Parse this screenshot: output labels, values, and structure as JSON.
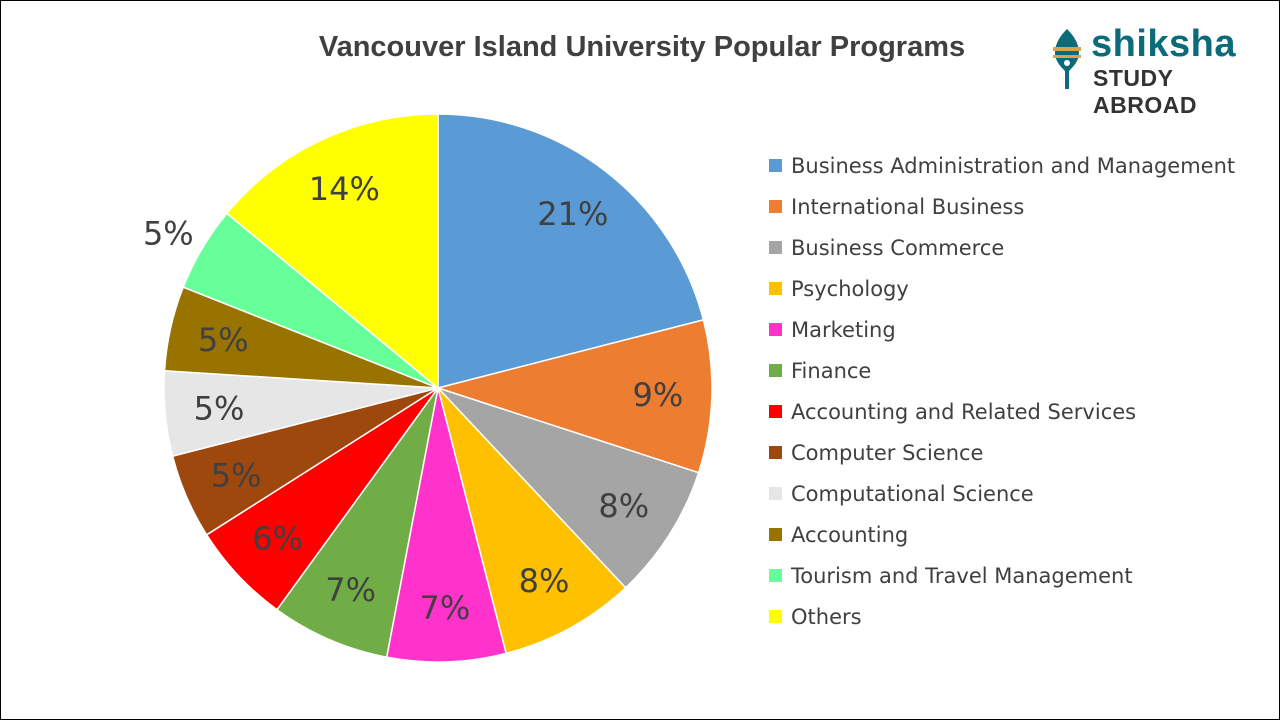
{
  "chart_data": {
    "type": "pie",
    "title": "Vancouver Island University Popular Programs",
    "legend_position": "right",
    "slices": [
      {
        "name": "Business Administration and Management",
        "value": 21,
        "label": "21%",
        "color": "#5B9BD5"
      },
      {
        "name": "International Business",
        "value": 9,
        "label": "9%",
        "color": "#ED7D31"
      },
      {
        "name": "Business Commerce",
        "value": 8,
        "label": "8%",
        "color": "#A5A5A5"
      },
      {
        "name": "Psychology",
        "value": 8,
        "label": "8%",
        "color": "#FFC000"
      },
      {
        "name": "Marketing",
        "value": 7,
        "label": "7%",
        "color": "#FF33CC"
      },
      {
        "name": "Finance",
        "value": 7,
        "label": "7%",
        "color": "#70AD47"
      },
      {
        "name": "Accounting and Related Services",
        "value": 6,
        "label": "6%",
        "color": "#FF0000"
      },
      {
        "name": "Computer Science",
        "value": 5,
        "label": "5%",
        "color": "#9E480E"
      },
      {
        "name": "Computational Science",
        "value": 5,
        "label": "5%",
        "color": "#E7E6E6"
      },
      {
        "name": "Accounting",
        "value": 5,
        "label": "5%",
        "color": "#997300"
      },
      {
        "name": "Tourism and Travel Management",
        "value": 5,
        "label": "5%",
        "color": "#66FF99"
      },
      {
        "name": "Others",
        "value": 14,
        "label": "14%",
        "color": "#FFFF00"
      }
    ]
  },
  "logo": {
    "name": "shiksha",
    "tagline": "STUDY ABROAD",
    "icon": "pen-nib-icon",
    "color": "#0b6b7b"
  }
}
